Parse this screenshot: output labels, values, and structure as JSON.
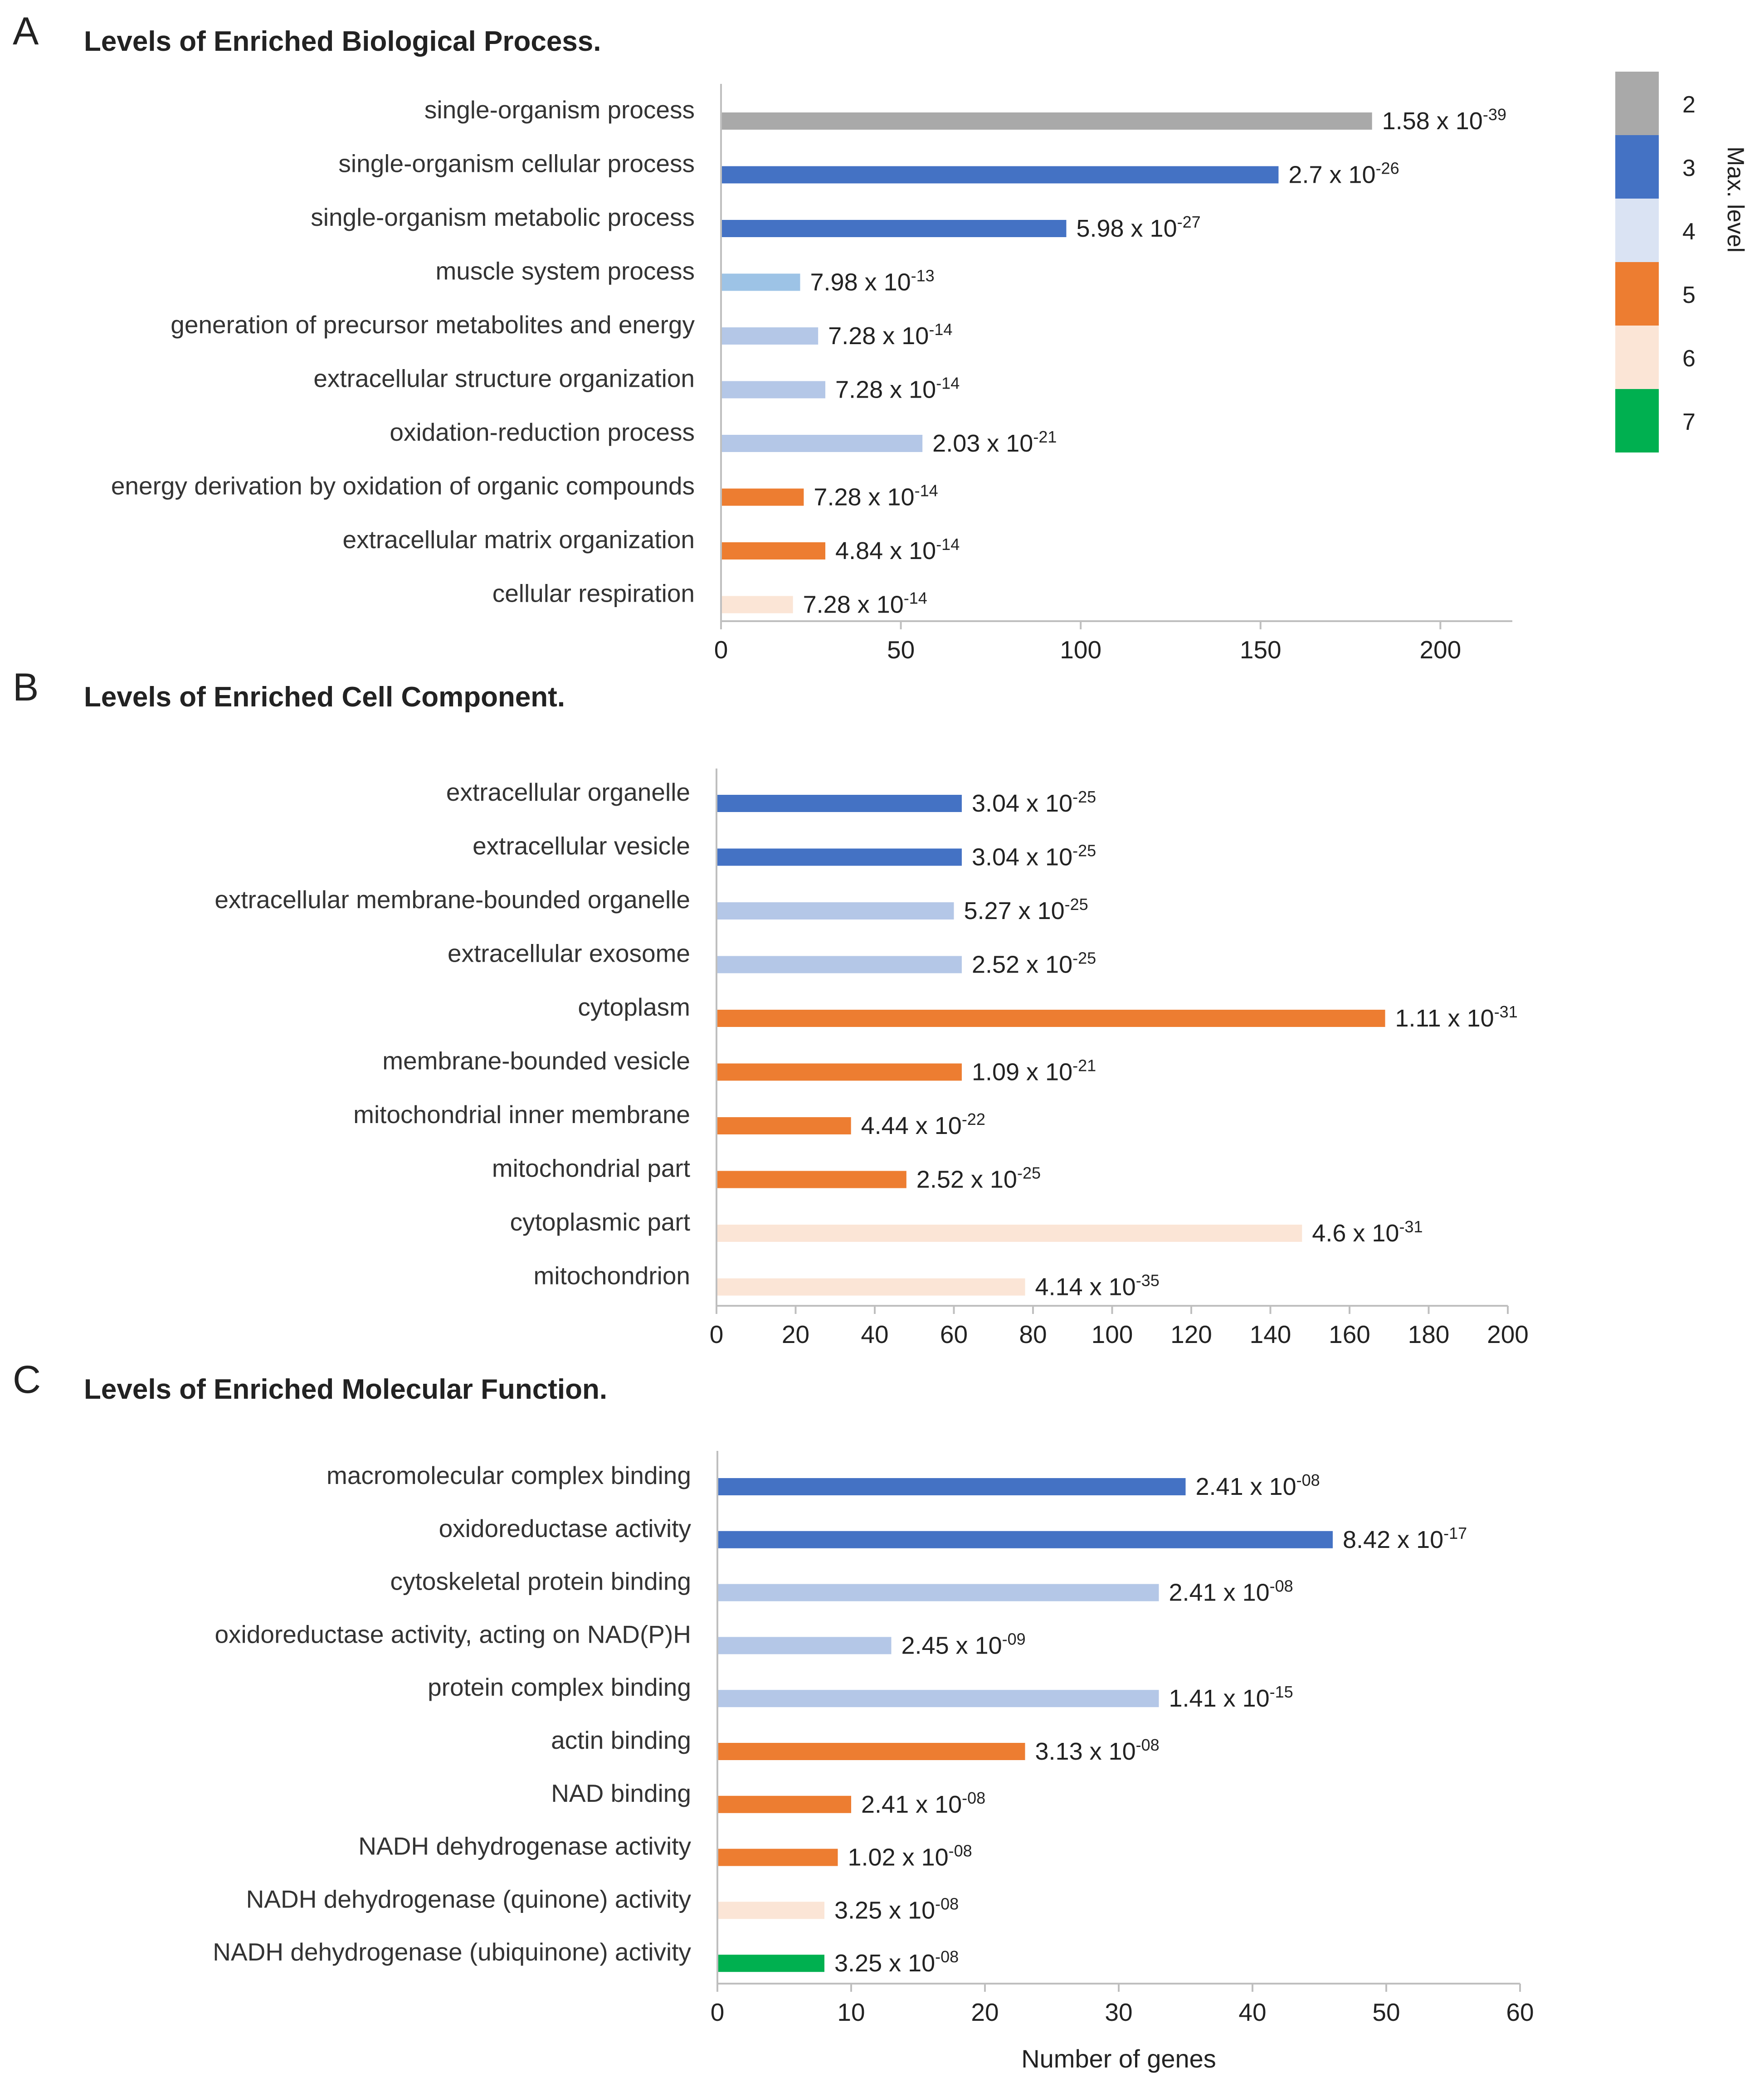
{
  "legend": {
    "title": "Max. level",
    "items": [
      {
        "label": "2",
        "color": "#a9a9a9"
      },
      {
        "label": "3",
        "color": "#4472c4"
      },
      {
        "label": "4",
        "color": "#dae3f3"
      },
      {
        "label": "5",
        "color": "#ed7d31"
      },
      {
        "label": "6",
        "color": "#fbe5d6"
      },
      {
        "label": "7",
        "color": "#00b050"
      }
    ]
  },
  "chart_data": [
    {
      "type": "bar",
      "orientation": "horizontal",
      "panel": "A",
      "title": "Levels of Enriched Biological Process.",
      "xlabel": "",
      "xlim": [
        0,
        220
      ],
      "xticks": [
        0,
        50,
        100,
        150,
        200
      ],
      "categories": [
        "single-organism process",
        "single-organism cellular process",
        "single-organism metabolic process",
        "muscle system process",
        "generation of precursor metabolites and energy",
        "extracellular structure organization",
        "oxidation-reduction process",
        "energy derivation by oxidation of organic compounds",
        "extracellular matrix organization",
        "cellular respiration"
      ],
      "values": [
        181,
        155,
        96,
        22,
        27,
        29,
        56,
        23,
        29,
        20
      ],
      "levels": [
        "2",
        "3",
        "3",
        "4",
        "4",
        "4",
        "4",
        "5",
        "5",
        "6"
      ],
      "colors": [
        "#a9a9a9",
        "#4472c4",
        "#4472c4",
        "#9dc3e6",
        "#b4c7e7",
        "#b4c7e7",
        "#b4c7e7",
        "#ed7d31",
        "#ed7d31",
        "#fbe5d6"
      ],
      "pvalue_base": [
        "1.58 x 10",
        "2.7 x 10",
        "5.98 x 10",
        "7.98 x 10",
        "7.28 x 10",
        "7.28 x 10",
        "2.03 x 10",
        "7.28 x 10",
        "4.84 x 10",
        "7.28 x 10"
      ],
      "pvalue_exp": [
        "-39",
        "-26",
        "-27",
        "-13",
        "-14",
        "-14",
        "-21",
        "-14",
        "-14",
        "-14"
      ]
    },
    {
      "type": "bar",
      "orientation": "horizontal",
      "panel": "B",
      "title": "Levels of Enriched Cell Component.",
      "xlabel": "",
      "xlim": [
        0,
        200
      ],
      "xticks": [
        0,
        20,
        40,
        60,
        80,
        100,
        120,
        140,
        160,
        180,
        200
      ],
      "categories": [
        "extracellular organelle",
        "extracellular vesicle",
        "extracellular membrane-bounded organelle",
        "extracellular exosome",
        "cytoplasm",
        "membrane-bounded vesicle",
        "mitochondrial inner membrane",
        "mitochondrial part",
        "cytoplasmic part",
        "mitochondrion"
      ],
      "values": [
        62,
        62,
        60,
        62,
        169,
        62,
        34,
        48,
        148,
        78
      ],
      "levels": [
        "3",
        "3",
        "4",
        "4",
        "5",
        "5",
        "5",
        "5",
        "6",
        "6"
      ],
      "colors": [
        "#4472c4",
        "#4472c4",
        "#b4c7e7",
        "#b4c7e7",
        "#ed7d31",
        "#ed7d31",
        "#ed7d31",
        "#ed7d31",
        "#fbe5d6",
        "#fbe5d6"
      ],
      "pvalue_base": [
        "3.04 x 10",
        "3.04 x 10",
        "5.27 x 10",
        "2.52 x 10",
        "1.11 x 10",
        "1.09 x 10",
        "4.44 x 10",
        "2.52 x 10",
        "4.6 x 10",
        "4.14 x 10"
      ],
      "pvalue_exp": [
        "-25",
        "-25",
        "-25",
        "-25",
        "-31",
        "-21",
        "-22",
        "-25",
        "-31",
        "-35"
      ]
    },
    {
      "type": "bar",
      "orientation": "horizontal",
      "panel": "C",
      "title": "Levels of Enriched Molecular Function.",
      "xlabel": "Number of genes",
      "xlim": [
        0,
        60
      ],
      "xticks": [
        0,
        10,
        20,
        30,
        40,
        50,
        60
      ],
      "categories": [
        "macromolecular complex binding",
        "oxidoreductase activity",
        "cytoskeletal protein binding",
        "oxidoreductase activity, acting on NAD(P)H",
        "protein complex binding",
        "actin binding",
        "NAD binding",
        "NADH dehydrogenase activity",
        "NADH dehydrogenase (quinone) activity",
        "NADH dehydrogenase (ubiquinone) activity"
      ],
      "values": [
        35,
        46,
        33,
        13,
        33,
        23,
        10,
        9,
        8,
        8
      ],
      "levels": [
        "3",
        "3",
        "4",
        "4",
        "4",
        "5",
        "5",
        "5",
        "6",
        "7"
      ],
      "colors": [
        "#4472c4",
        "#4472c4",
        "#b4c7e7",
        "#b4c7e7",
        "#b4c7e7",
        "#ed7d31",
        "#ed7d31",
        "#ed7d31",
        "#fbe5d6",
        "#00b050"
      ],
      "pvalue_base": [
        "2.41 x 10",
        "8.42 x 10",
        "2.41 x 10",
        "2.45 x 10",
        "1.41 x 10",
        "3.13 x 10",
        "2.41 x 10",
        "1.02 x 10",
        "3.25 x 10",
        "3.25 x 10"
      ],
      "pvalue_exp": [
        "-08",
        "-17",
        "-08",
        "-09",
        "-15",
        "-08",
        "-08",
        "-08",
        "-08",
        "-08"
      ]
    }
  ]
}
